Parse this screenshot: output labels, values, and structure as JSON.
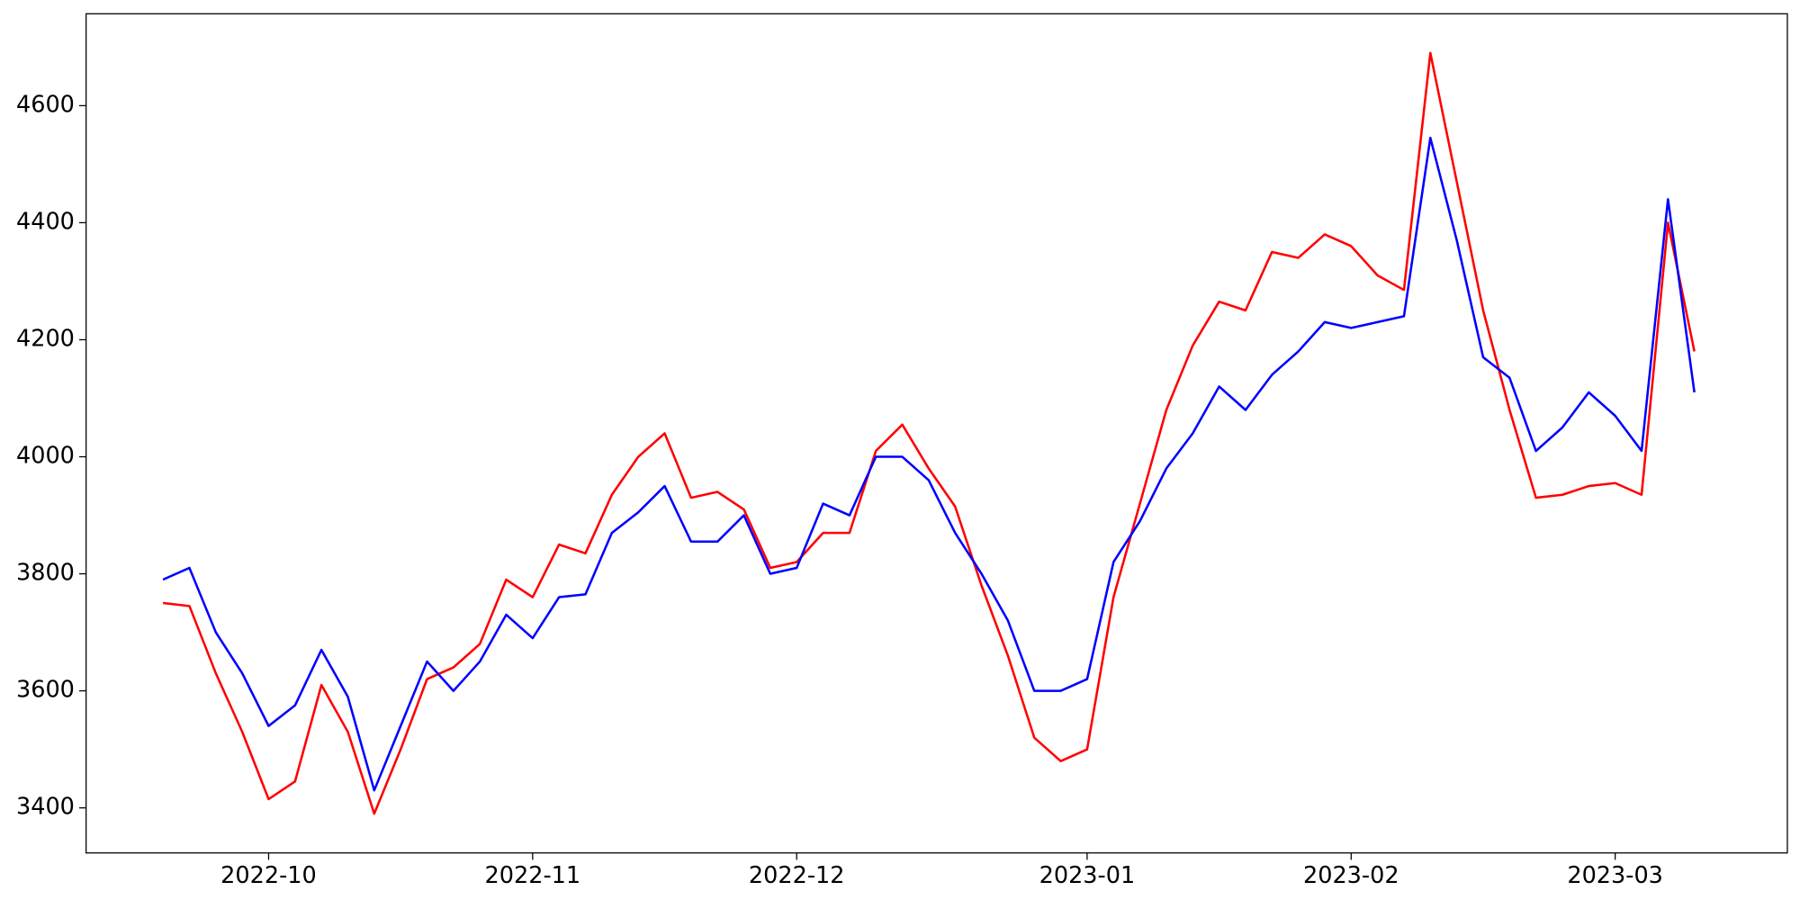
{
  "chart_data": {
    "type": "line",
    "categories": [
      null,
      null,
      null,
      null,
      "2022-10",
      null,
      null,
      null,
      null,
      null,
      null,
      null,
      null,
      null,
      "2022-11",
      null,
      null,
      null,
      null,
      null,
      null,
      null,
      null,
      null,
      "2022-12",
      null,
      null,
      null,
      null,
      null,
      null,
      null,
      null,
      null,
      null,
      "2023-01",
      null,
      null,
      null,
      null,
      null,
      null,
      null,
      null,
      null,
      "2023-02",
      null,
      null,
      null,
      null,
      null,
      null,
      null,
      null,
      null,
      "2023-03",
      null,
      null,
      null
    ],
    "series": [
      {
        "color": "#ff0000",
        "values": [
          3750,
          3745,
          3630,
          3530,
          3415,
          3445,
          3610,
          3530,
          3390,
          3500,
          3620,
          3640,
          3680,
          3790,
          3760,
          3850,
          3835,
          3935,
          4000,
          4040,
          3930,
          3940,
          3910,
          3810,
          3820,
          3870,
          3870,
          4010,
          4055,
          3980,
          3915,
          3780,
          3660,
          3520,
          3480,
          3500,
          3760,
          3920,
          4080,
          4190,
          4265,
          4250,
          4350,
          4340,
          4380,
          4360,
          4310,
          4285,
          4690,
          4470,
          4250,
          4080,
          3930,
          3935,
          3950,
          3955,
          3935,
          4400,
          4180
        ]
      },
      {
        "color": "#0000ff",
        "values": [
          3790,
          3810,
          3700,
          3630,
          3540,
          3575,
          3670,
          3590,
          3430,
          3540,
          3650,
          3600,
          3650,
          3730,
          3690,
          3760,
          3765,
          3870,
          3905,
          3950,
          3855,
          3855,
          3900,
          3800,
          3810,
          3920,
          3900,
          4000,
          4000,
          3960,
          3870,
          3800,
          3720,
          3600,
          3600,
          3620,
          3820,
          3890,
          3980,
          4040,
          4120,
          4080,
          4140,
          4180,
          4230,
          4220,
          4230,
          4240,
          4545,
          4370,
          4170,
          4135,
          4010,
          4050,
          4110,
          4070,
          4010,
          4440,
          4110
        ]
      }
    ],
    "ylim": [
      3323,
      4757
    ],
    "yticks": [
      3400,
      3600,
      3800,
      4000,
      4200,
      4400,
      4600
    ],
    "grid": false
  }
}
